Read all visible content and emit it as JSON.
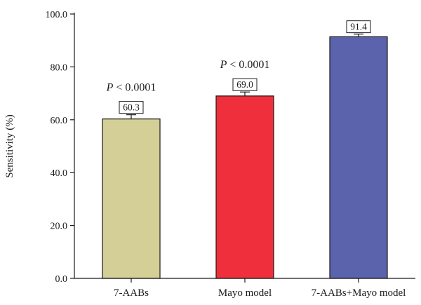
{
  "chart_data": {
    "type": "bar",
    "title": "",
    "xlabel": "",
    "ylabel": "Sensitivity (%)",
    "ylim": [
      0,
      100
    ],
    "yticks": [
      "0.0",
      "20.0",
      "40.0",
      "60.0",
      "80.0",
      "100.0"
    ],
    "categories": [
      "7-AABs",
      "Mayo model",
      "7-AABs+Mayo model"
    ],
    "values": [
      60.3,
      69.0,
      91.4
    ],
    "value_labels": [
      "60.3",
      "69.0",
      "91.4"
    ],
    "error_upper": [
      61.9,
      70.5,
      92.4
    ],
    "colors": [
      "#d3cf96",
      "#ef2f3c",
      "#5b63ad"
    ],
    "annotations": [
      {
        "category": "7-AABs",
        "italic": "P",
        "text": " < 0.0001"
      },
      {
        "category": "Mayo model",
        "italic": "P",
        "text": " < 0.0001"
      }
    ],
    "grid": false,
    "legend": "none"
  }
}
